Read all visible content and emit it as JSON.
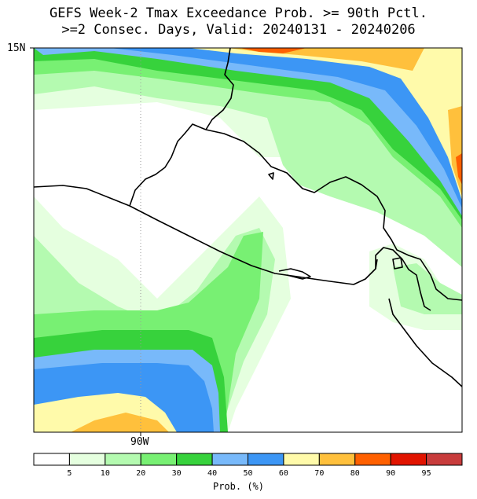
{
  "title_line1": "GEFS Week-2 Tmax Exceedance Prob. >= 90th Pctl.",
  "title_line2": ">=2 Consec. Days, Valid: 20240131 - 20240206",
  "lat_label": "15N",
  "lon_label": "90W",
  "colorbar": {
    "label": "Prob. (%)",
    "ticks": [
      "5",
      "10",
      "20",
      "30",
      "40",
      "50",
      "60",
      "70",
      "80",
      "90",
      "95"
    ],
    "colors": [
      "#ffffff",
      "#e5ffdf",
      "#b4fab0",
      "#78f073",
      "#37d23c",
      "#78b9fa",
      "#3c96f5",
      "#fffaaa",
      "#ffc03c",
      "#ff6000",
      "#e11400",
      "#c83c3c"
    ]
  },
  "colors": {
    "p5": "#e5ffdf",
    "p10": "#b4fab0",
    "p20": "#78f073",
    "p30": "#37d23c",
    "p40": "#78b9fa",
    "p50": "#3c96f5",
    "p60": "#fffaaa",
    "p70": "#ffc03c",
    "p80": "#ff6000",
    "p90": "#e11400"
  }
}
